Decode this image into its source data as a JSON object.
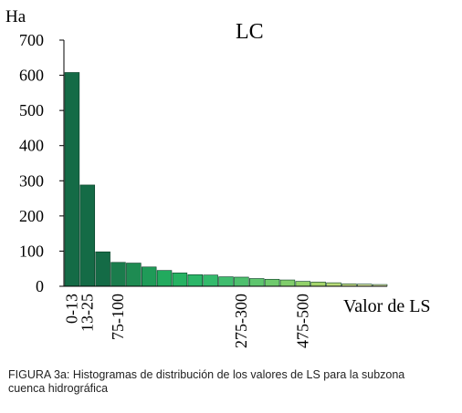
{
  "chart_data": {
    "type": "bar",
    "title": "LC",
    "ylabel": "Ha",
    "xlabel": "Valor de LS",
    "ylim": [
      0,
      700
    ],
    "yticks": [
      0,
      100,
      200,
      300,
      400,
      500,
      600,
      700
    ],
    "x_tick_labels": [
      "0-13",
      "13-25",
      "75-100",
      "275-300",
      "475-500"
    ],
    "x_tick_bar_index": [
      0,
      1,
      3,
      11,
      15
    ],
    "values": [
      608,
      288,
      98,
      68,
      66,
      55,
      45,
      38,
      33,
      32,
      27,
      26,
      22,
      20,
      18,
      14,
      12,
      10,
      7,
      6,
      5
    ],
    "colors": [
      "#146b46",
      "#146b46",
      "#146b46",
      "#1a7c4c",
      "#1e8b52",
      "#1f9b58",
      "#22aa5e",
      "#25b262",
      "#2bb668",
      "#33ba6c",
      "#3fbd6e",
      "#4ec06e",
      "#5ec56e",
      "#6fca6d",
      "#80cd6b",
      "#92d16a",
      "#a5d56c",
      "#b8da78",
      "#c9e08a",
      "#d6e59c",
      "#e2ebad"
    ]
  },
  "caption": {
    "line1": "FIGURA 3a: Histogramas de distribución de los valores de LS para la subzona",
    "line2": "cuenca hidrográfica"
  }
}
